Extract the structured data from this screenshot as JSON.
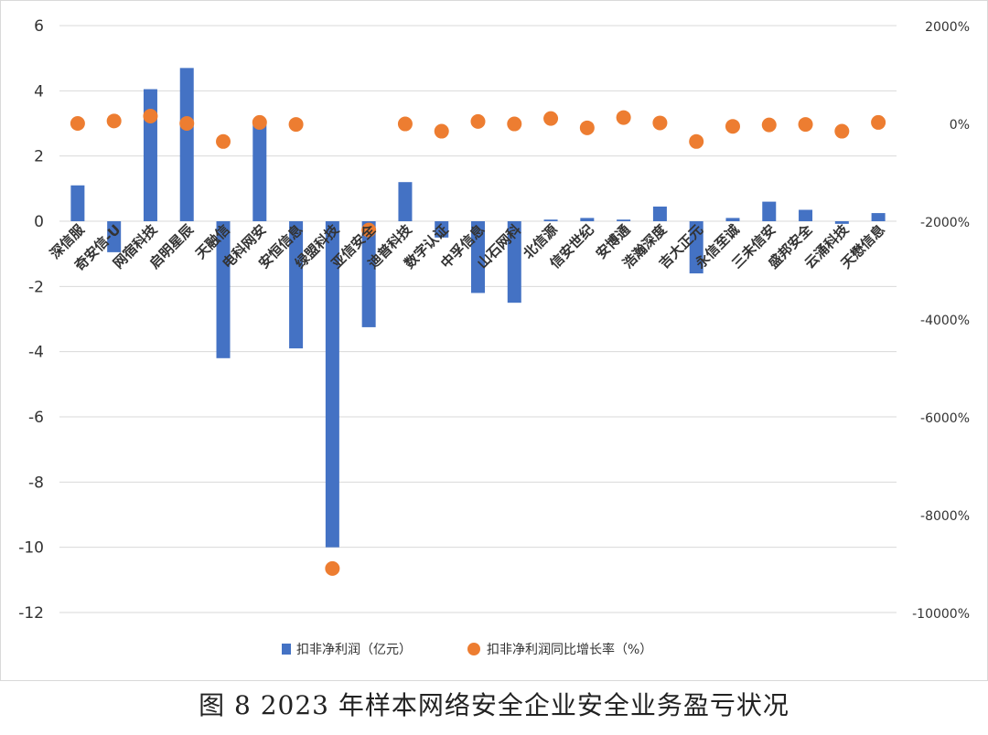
{
  "caption": "图 8   2023 年样本网络安全企业安全业务盈亏状况",
  "chart_data": {
    "type": "bar",
    "categories": [
      "深信服",
      "奇安信-U",
      "网宿科技",
      "启明星辰",
      "天融信",
      "电科网安",
      "安恒信息",
      "绿盟科技",
      "亚信安全",
      "迪普科技",
      "数字认证",
      "中孚信息",
      "山石网科",
      "北信源",
      "信安世纪",
      "安博通",
      "浩瀚深度",
      "吉大正元",
      "永信至诚",
      "三未信安",
      "盛邦安全",
      "云涌科技",
      "天懋信息"
    ],
    "series": [
      {
        "name": "扣非净利润（亿元）",
        "type": "bar",
        "axis": "left",
        "values": [
          1.1,
          -0.95,
          4.05,
          4.7,
          -4.2,
          3.1,
          -3.9,
          -10.0,
          -3.25,
          1.2,
          -0.5,
          -2.2,
          -2.5,
          0.05,
          0.1,
          0.05,
          0.45,
          -1.6,
          0.1,
          0.6,
          0.35,
          -0.08,
          0.25
        ],
        "color": "#4472C4"
      },
      {
        "name": "扣非净利润同比增长率（%）",
        "type": "scatter",
        "axis": "right",
        "values": [
          0,
          50,
          150,
          0,
          -370,
          20,
          -20,
          -9100,
          -2180,
          -10,
          -160,
          40,
          -10,
          100,
          -90,
          120,
          10,
          -370,
          -60,
          -30,
          -20,
          -160,
          20
        ],
        "color": "#ED7D31"
      }
    ],
    "y_left": {
      "min": -12,
      "max": 6,
      "ticks": [
        6,
        4,
        2,
        0,
        -2,
        -4,
        -6,
        -8,
        -10,
        -12
      ]
    },
    "y_right": {
      "min": -10000,
      "max": 2000,
      "ticks": [
        2000,
        0,
        -2000,
        -4000,
        -6000,
        -8000,
        -10000
      ],
      "tick_labels": [
        "2000%",
        "0%",
        "-2000%",
        "-4000%",
        "-6000%",
        "-8000%",
        "-10000%"
      ]
    },
    "grid": true,
    "legend_position": "bottom"
  }
}
